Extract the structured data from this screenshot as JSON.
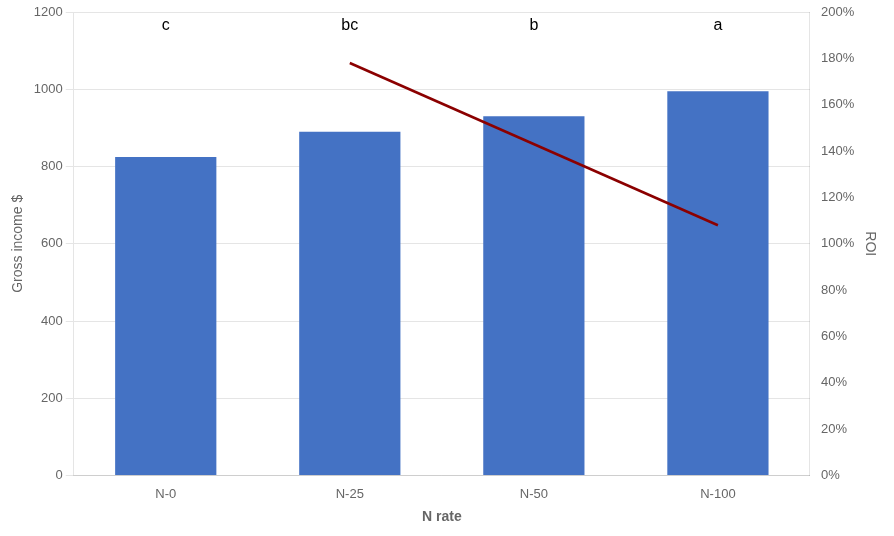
{
  "chart_data": {
    "type": "bar",
    "categories": [
      "N-0",
      "N-25",
      "N-50",
      "N-100"
    ],
    "series": [
      {
        "type": "bar",
        "color": "#4472C4",
        "values": [
          825,
          890,
          930,
          995
        ]
      },
      {
        "type": "line",
        "color": "#8B0000",
        "axis": "y2",
        "values": [
          null,
          1.78,
          null,
          1.08
        ]
      }
    ],
    "annotations": [
      "c",
      "bc",
      "b",
      "a"
    ],
    "xlabel": "N rate",
    "ylabel": "Gross income $",
    "y2label": "ROI",
    "ylim": [
      0,
      1200
    ],
    "yticks": [
      0,
      200,
      400,
      600,
      800,
      1000,
      1200
    ],
    "y2lim": [
      0,
      2.0
    ],
    "y2ticks": [
      {
        "value": 0.0,
        "label": "0%"
      },
      {
        "value": 0.2,
        "label": "20%"
      },
      {
        "value": 0.4,
        "label": "40%"
      },
      {
        "value": 0.6,
        "label": "60%"
      },
      {
        "value": 0.8,
        "label": "80%"
      },
      {
        "value": 1.0,
        "label": "100%"
      },
      {
        "value": 1.2,
        "label": "120%"
      },
      {
        "value": 1.4,
        "label": "140%"
      },
      {
        "value": 1.6,
        "label": "160%"
      },
      {
        "value": 1.8,
        "label": "180%"
      },
      {
        "value": 2.0,
        "label": "200%"
      }
    ],
    "grid": true
  }
}
